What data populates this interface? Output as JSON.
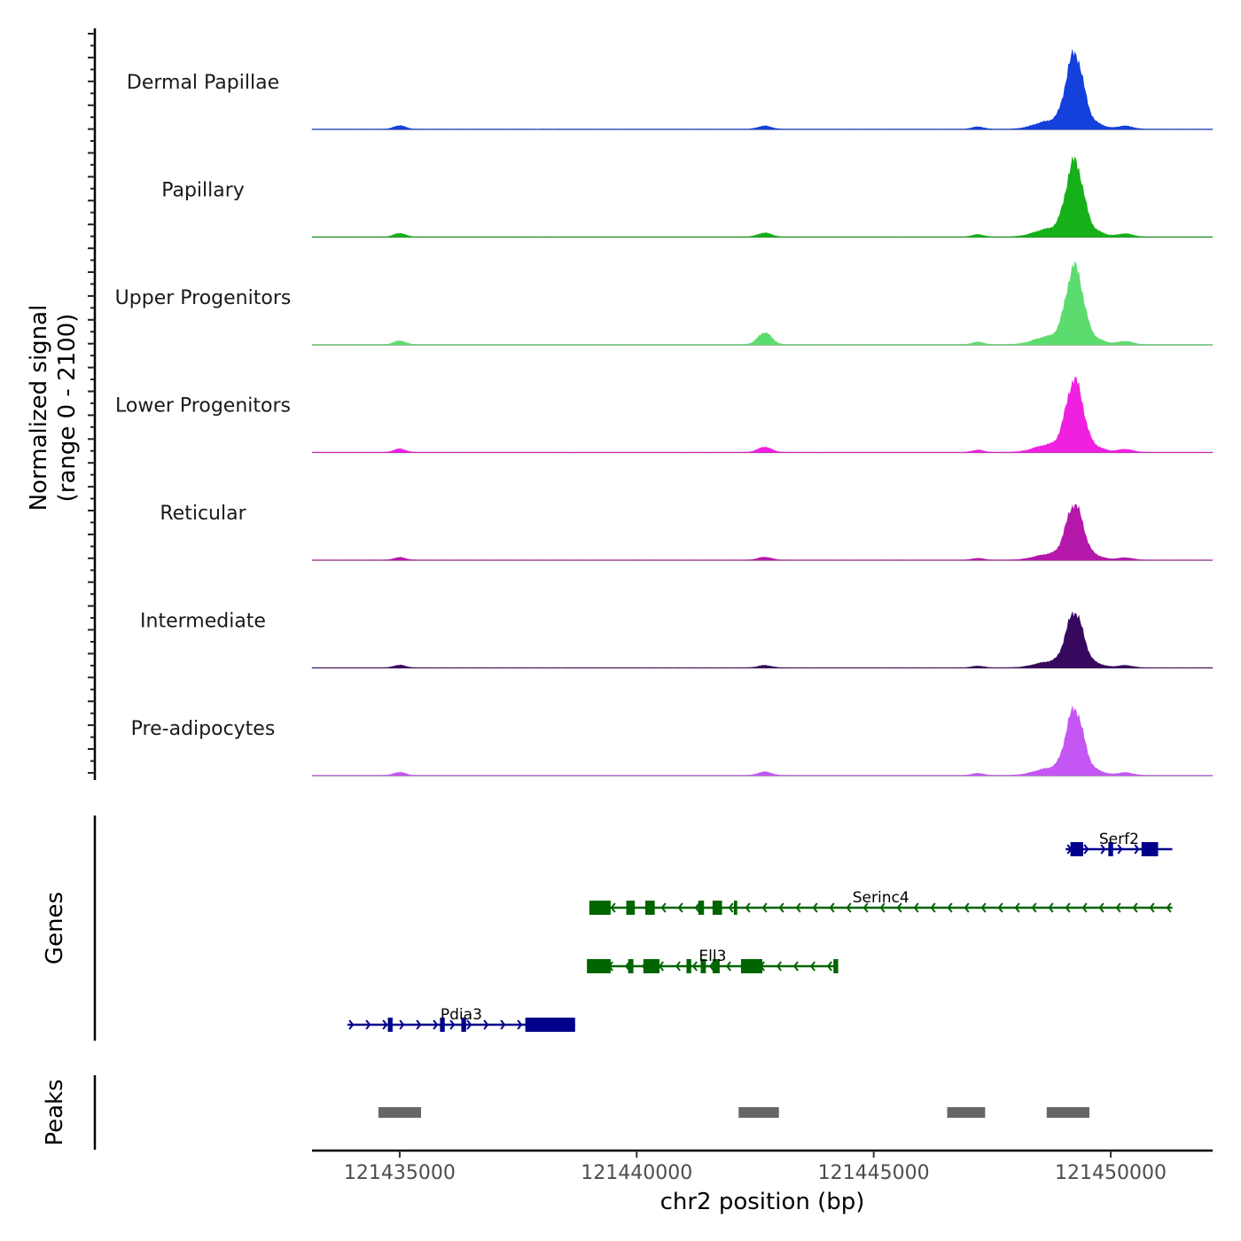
{
  "chart_data": {
    "type": "area",
    "title": "",
    "chromosome": "chr2",
    "xlabel": "chr2 position (bp)",
    "ylabel_line1": "Normalized signal",
    "ylabel_line2": "(range 0 - 2100)",
    "y_range": [
      0,
      2100
    ],
    "xlim": [
      121433150,
      121452150
    ],
    "x_ticks": [
      121435000,
      121440000,
      121445000,
      121450000
    ],
    "x_tick_labels": [
      "121435000",
      "121440000",
      "121445000",
      "121450000"
    ],
    "peak_profile": [
      {
        "pos": 121435000,
        "width": 120,
        "rel": 0.045
      },
      {
        "pos": 121442700,
        "width": 140,
        "rel": 0.03
      },
      {
        "pos": 121447200,
        "width": 120,
        "rel": 0.03
      },
      {
        "pos": 121448700,
        "width": 300,
        "rel": 0.1
      },
      {
        "pos": 121449240,
        "width": 180,
        "rel": 0.95
      },
      {
        "pos": 121449700,
        "width": 180,
        "rel": 0.06
      },
      {
        "pos": 121450300,
        "width": 160,
        "rel": 0.04
      }
    ],
    "series": [
      {
        "name": "Dermal Papillae",
        "color": "#1440dc",
        "max": 2050,
        "peak2_rel": 0.04
      },
      {
        "name": "Papillary",
        "color": "#16b01a",
        "max": 2050,
        "peak2_rel": 0.05
      },
      {
        "name": "Upper Progenitors",
        "color": "#5cdc6e",
        "max": 2100,
        "peak2_rel": 0.15
      },
      {
        "name": "Lower Progenitors",
        "color": "#f020e0",
        "max": 1950,
        "peak2_rel": 0.07
      },
      {
        "name": "Reticular",
        "color": "#b418aa",
        "max": 1500,
        "peak2_rel": 0.05
      },
      {
        "name": "Intermediate",
        "color": "#36095e",
        "max": 1500,
        "peak2_rel": 0.04
      },
      {
        "name": "Pre-adipocytes",
        "color": "#c456f4",
        "max": 1800,
        "peak2_rel": 0.05
      }
    ],
    "genes_label": "Genes",
    "genes": [
      {
        "name": "Serf2",
        "strand": "+",
        "color": "#00008b",
        "start": 121449050,
        "end": 121451300,
        "exons": [
          [
            121449150,
            121449420
          ],
          [
            121449950,
            121450050
          ],
          [
            121450650,
            121451000
          ]
        ]
      },
      {
        "name": "Serinc4",
        "strand": "-",
        "color": "#006400",
        "start": 121439000,
        "end": 121451300,
        "exons": [
          [
            121439000,
            121439450
          ],
          [
            121439780,
            121439960
          ],
          [
            121440180,
            121440380
          ],
          [
            121441300,
            121441420
          ],
          [
            121441600,
            121441800
          ],
          [
            121442050,
            121442120
          ]
        ]
      },
      {
        "name": "Ell3",
        "strand": "-",
        "color": "#006400",
        "start": 121438950,
        "end": 121444250,
        "exons": [
          [
            121438950,
            121439450
          ],
          [
            121439820,
            121439930
          ],
          [
            121440140,
            121440480
          ],
          [
            121441050,
            121441150
          ],
          [
            121441350,
            121441460
          ],
          [
            121441600,
            121441750
          ],
          [
            121442200,
            121442650
          ],
          [
            121444150,
            121444250
          ]
        ]
      },
      {
        "name": "Pdia3",
        "strand": "+",
        "color": "#00008b",
        "start": 121433900,
        "end": 121438700,
        "exons": [
          [
            121434750,
            121434850
          ],
          [
            121435850,
            121435950
          ],
          [
            121436300,
            121436400
          ],
          [
            121437650,
            121438700
          ]
        ]
      }
    ],
    "peaks_label": "Peaks",
    "peaks": [
      [
        121434550,
        121435450
      ],
      [
        121442150,
        121443000
      ],
      [
        121446550,
        121447350
      ],
      [
        121448650,
        121449550
      ]
    ]
  }
}
